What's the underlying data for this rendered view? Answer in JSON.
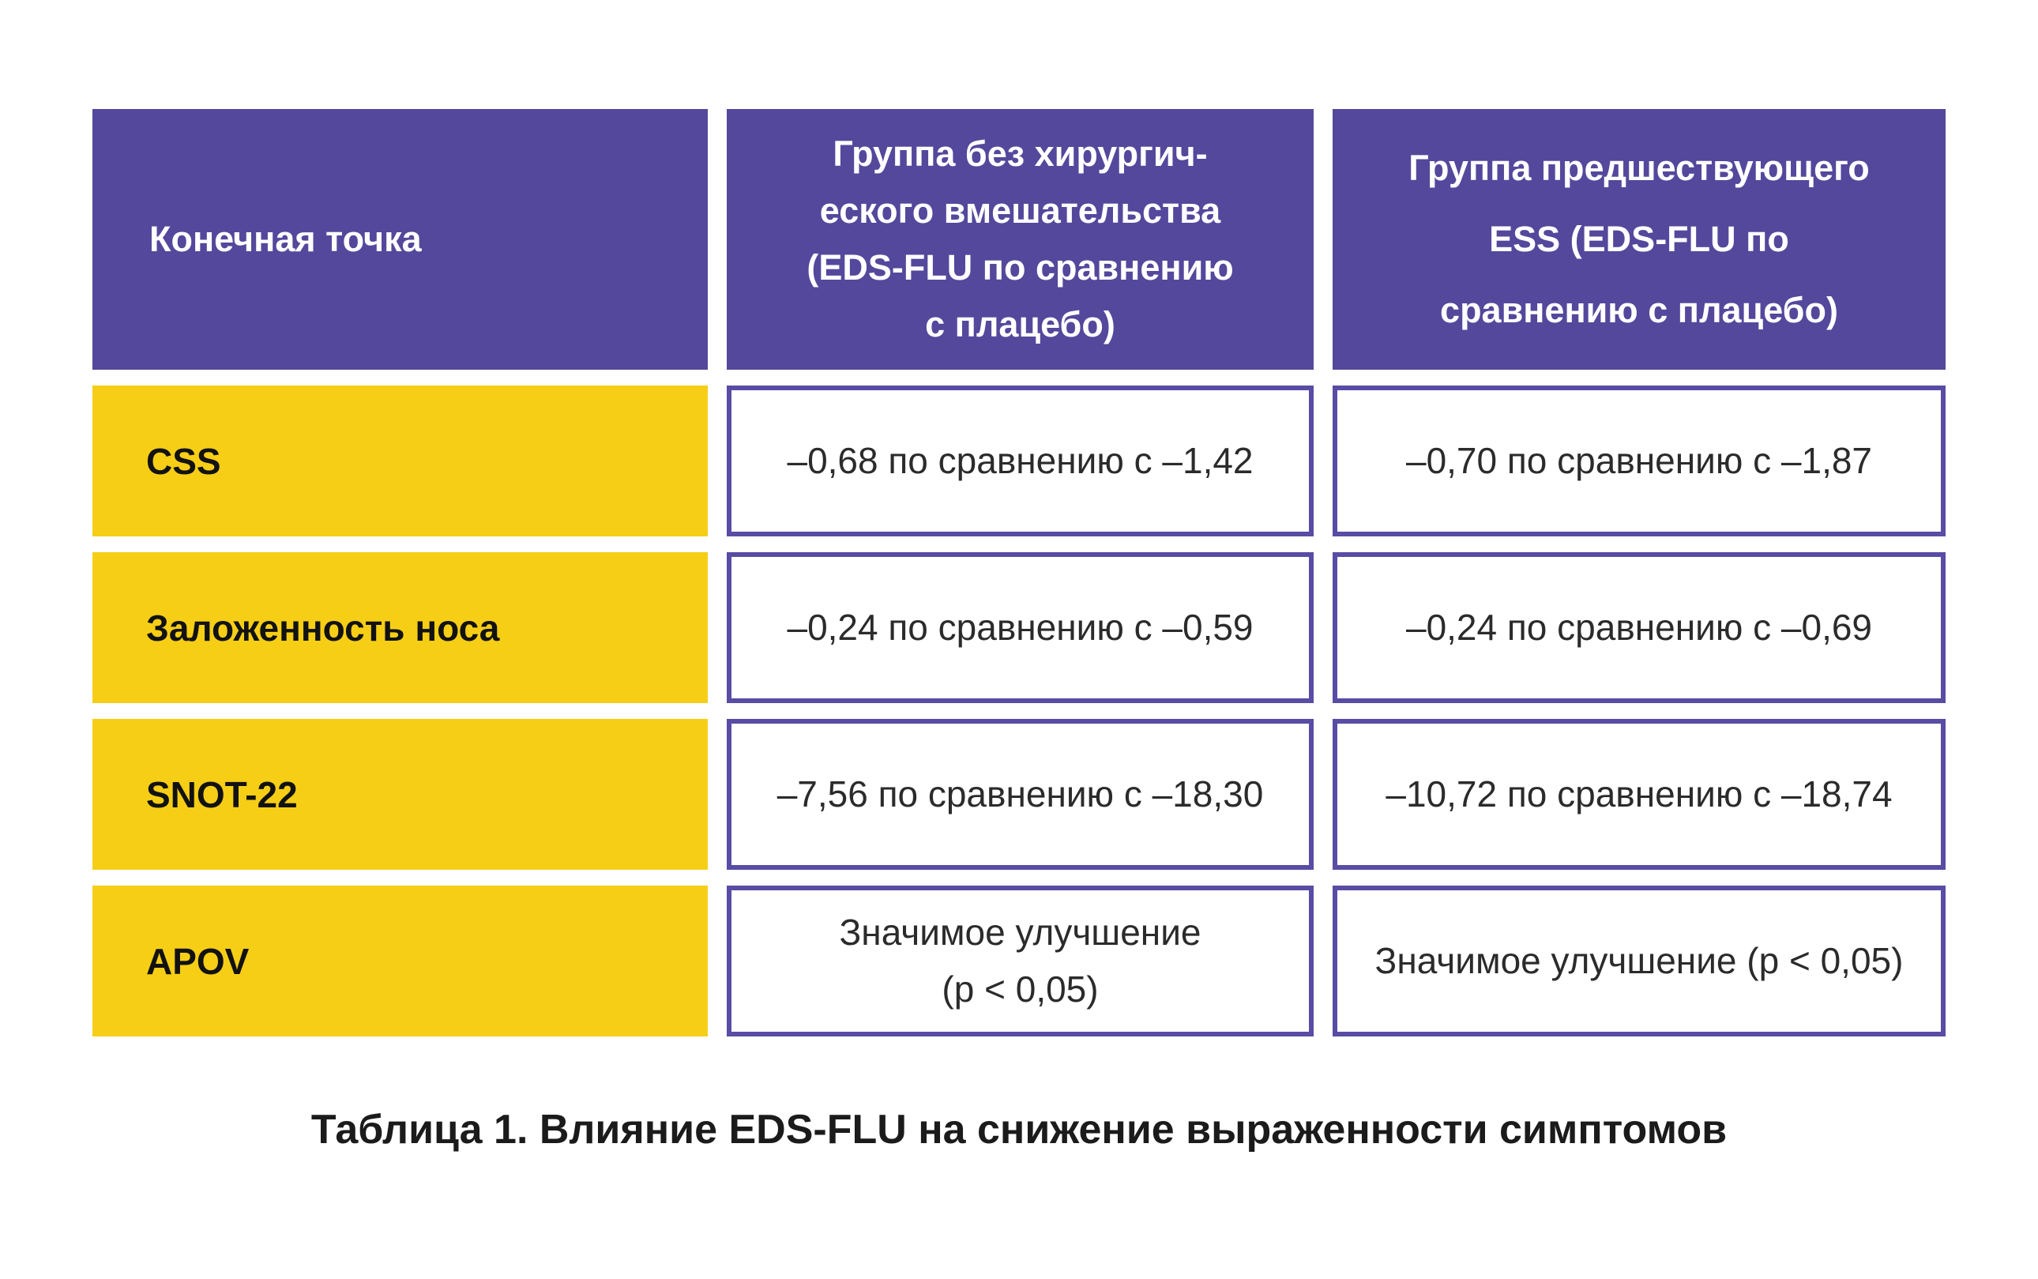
{
  "colors": {
    "header_bg": "#54489c",
    "endpoint_bg": "#f6ce16",
    "cell_border": "#584ca4",
    "header_text": "#ffffff",
    "body_text": "#2b2b2b",
    "endpoint_text": "#121212",
    "caption_text": "#1b1b1b"
  },
  "table": {
    "header": {
      "endpoint": "Конечная точка",
      "no_surgery": "Группа без хирургич-\nеского вмешательства\n(EDS-FLU по сравнению\nс плацебо)",
      "prior_ess": "Группа предшествующего\nESS (EDS-FLU по\nсравнению с плацебо)"
    },
    "rows": [
      {
        "endpoint": "CSS",
        "no_surgery": "–0,68 по сравнению с –1,42",
        "prior_ess": "–0,70 по сравнению с –1,87"
      },
      {
        "endpoint": "Заложенность носа",
        "no_surgery": "–0,24 по сравнению с –0,59",
        "prior_ess": "–0,24 по сравнению с –0,69"
      },
      {
        "endpoint": "SNOT-22",
        "no_surgery": "–7,56 по сравнению с –18,30",
        "prior_ess": "–10,72 по сравнению с –18,74"
      },
      {
        "endpoint": "APOV",
        "no_surgery": "Значимое улучшение\n(p < 0,05)",
        "prior_ess": "Значимое улучшение (p < 0,05)"
      }
    ],
    "caption": "Таблица 1. Влияние EDS-FLU на снижение выраженности симптомов"
  },
  "chart_data": {
    "type": "table",
    "title": "Таблица 1. Влияние EDS-FLU на снижение выраженности симптомов",
    "columns": [
      "Конечная точка",
      "Группа без хирургического вмешательства (EDS-FLU по сравнению с плацебо)",
      "Группа предшествующего ESS (EDS-FLU по сравнению с плацебо)"
    ],
    "rows": [
      [
        "CSS",
        "–0,68 по сравнению с –1,42",
        "–0,70 по сравнению с –1,87"
      ],
      [
        "Заложенность носа",
        "–0,24 по сравнению с –0,59",
        "–0,24 по сравнению с –0,69"
      ],
      [
        "SNOT-22",
        "–7,56 по сравнению с –18,30",
        "–10,72 по сравнению с –18,74"
      ],
      [
        "APOV",
        "Значимое улучшение (p < 0,05)",
        "Значимое улучшение (p < 0,05)"
      ]
    ]
  }
}
